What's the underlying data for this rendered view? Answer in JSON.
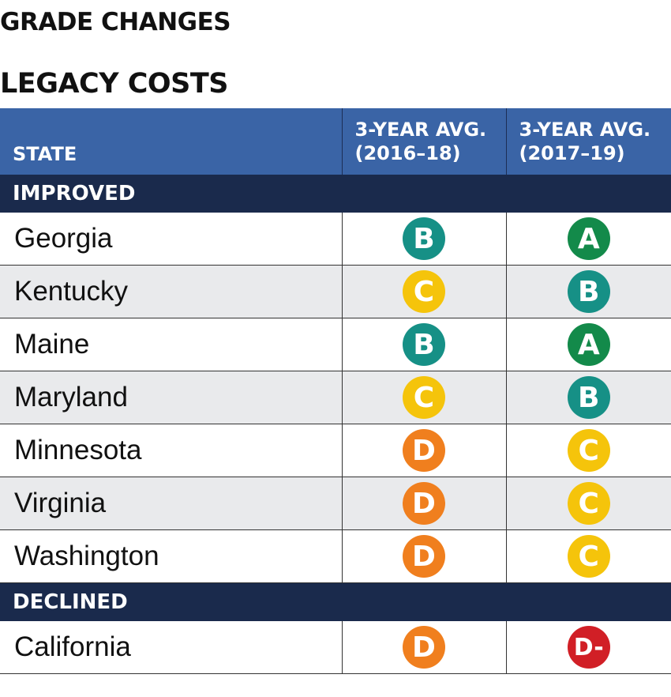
{
  "headings": {
    "line1": "GRADE CHANGES",
    "line2": "LEGACY COSTS"
  },
  "table": {
    "columns": [
      "STATE",
      "3-YEAR AVG.\n(2016–18)",
      "3-YEAR AVG.\n(2017–19)"
    ],
    "column_lines": [
      [
        "STATE"
      ],
      [
        "3-YEAR AVG.",
        "(2016–18)"
      ],
      [
        "3-YEAR AVG.",
        "(2017–19)"
      ]
    ]
  },
  "grade_colors": {
    "A": "#138a4a",
    "B": "#169086",
    "C": "#f5c40b",
    "D": "#f07f1e",
    "D-": "#d11f26"
  },
  "chart_data": {
    "type": "table",
    "title": "LEGACY COSTS",
    "subtitle": "GRADE CHANGES",
    "columns": [
      "STATE",
      "3-YEAR AVG. (2016–18)",
      "3-YEAR AVG. (2017–19)"
    ],
    "groups": [
      {
        "name": "IMPROVED",
        "rows": [
          {
            "state": "Georgia",
            "grade_2016_18": "B",
            "grade_2017_19": "A"
          },
          {
            "state": "Kentucky",
            "grade_2016_18": "C",
            "grade_2017_19": "B"
          },
          {
            "state": "Maine",
            "grade_2016_18": "B",
            "grade_2017_19": "A"
          },
          {
            "state": "Maryland",
            "grade_2016_18": "C",
            "grade_2017_19": "B"
          },
          {
            "state": "Minnesota",
            "grade_2016_18": "D",
            "grade_2017_19": "C"
          },
          {
            "state": "Virginia",
            "grade_2016_18": "D",
            "grade_2017_19": "C"
          },
          {
            "state": "Washington",
            "grade_2016_18": "D",
            "grade_2017_19": "C"
          }
        ]
      },
      {
        "name": "DECLINED",
        "rows": [
          {
            "state": "California",
            "grade_2016_18": "D",
            "grade_2017_19": "D-"
          }
        ]
      }
    ]
  }
}
